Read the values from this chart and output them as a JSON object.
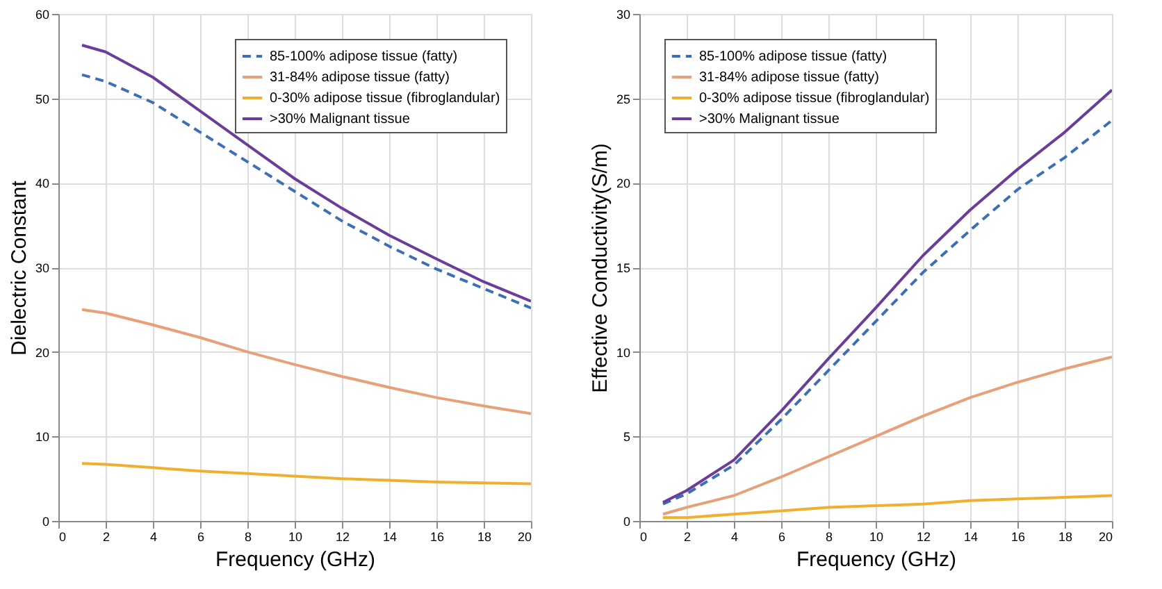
{
  "chart_data": [
    {
      "type": "line",
      "xlabel": "Frequency (GHz)",
      "ylabel": "Dielectric Constant",
      "x": [
        1,
        2,
        4,
        6,
        8,
        10,
        12,
        14,
        16,
        18,
        20
      ],
      "xlim": [
        0,
        20
      ],
      "xticks": [
        0,
        2,
        4,
        6,
        8,
        10,
        12,
        14,
        16,
        18,
        20
      ],
      "ylim": [
        0,
        60
      ],
      "yticks": [
        0,
        10,
        20,
        30,
        40,
        50,
        60
      ],
      "grid": true,
      "legend": "top right",
      "marker": "none",
      "series": [
        {
          "name": "85-100% adipose tissue (fatty)",
          "color": "#3d6fb6",
          "line_style": "dashed",
          "values": [
            52.8,
            52,
            49.5,
            46,
            42.5,
            39,
            35.5,
            32.5,
            29.8,
            27.5,
            25.2
          ]
        },
        {
          "name": "31-84% adipose tissue (fatty)",
          "color": "#e8a07a",
          "line_style": "solid",
          "values": [
            25,
            24.6,
            23.2,
            21.7,
            20,
            18.5,
            17.1,
            15.8,
            14.6,
            13.6,
            12.7
          ]
        },
        {
          "name": "0-30% adipose tissue (fibroglandular)",
          "color": "#efb030",
          "line_style": "solid",
          "values": [
            6.8,
            6.7,
            6.3,
            5.9,
            5.6,
            5.3,
            5.0,
            4.8,
            4.6,
            4.5,
            4.4
          ]
        },
        {
          "name": ">30% Malignant tissue",
          "color": "#6a3d9a",
          "line_style": "solid",
          "values": [
            56.3,
            55.5,
            52.5,
            48.5,
            44.5,
            40.5,
            37,
            33.8,
            31,
            28.3,
            26
          ]
        }
      ]
    },
    {
      "type": "line",
      "xlabel": "Frequency (GHz)",
      "ylabel": "Effective Conductivity(S/m)",
      "x": [
        1,
        2,
        4,
        6,
        8,
        10,
        12,
        14,
        16,
        18,
        20
      ],
      "xlim": [
        0,
        20
      ],
      "xticks": [
        0,
        2,
        4,
        6,
        8,
        10,
        12,
        14,
        16,
        18,
        20
      ],
      "ylim": [
        0,
        30
      ],
      "yticks": [
        0,
        5,
        10,
        15,
        20,
        25,
        30
      ],
      "grid": true,
      "legend": "top left",
      "marker": "none",
      "series": [
        {
          "name": "85-100% adipose tissue (fatty)",
          "color": "#3d6fb6",
          "line_style": "dashed",
          "values": [
            1.0,
            1.6,
            3.3,
            6.0,
            8.9,
            11.8,
            14.7,
            17.2,
            19.6,
            21.5,
            23.7
          ]
        },
        {
          "name": "31-84% adipose tissue (fatty)",
          "color": "#e8a07a",
          "line_style": "solid",
          "values": [
            0.4,
            0.8,
            1.5,
            2.6,
            3.8,
            5.0,
            6.2,
            7.3,
            8.2,
            9.0,
            9.7
          ]
        },
        {
          "name": "0-30% adipose tissue (fibroglandular)",
          "color": "#efb030",
          "line_style": "solid",
          "values": [
            0.2,
            0.2,
            0.4,
            0.6,
            0.8,
            0.9,
            1.0,
            1.2,
            1.3,
            1.4,
            1.5
          ]
        },
        {
          "name": ">30% Malignant tissue",
          "color": "#6a3d9a",
          "line_style": "solid",
          "values": [
            1.1,
            1.8,
            3.6,
            6.5,
            9.6,
            12.6,
            15.7,
            18.4,
            20.8,
            23,
            25.5
          ]
        }
      ]
    }
  ]
}
